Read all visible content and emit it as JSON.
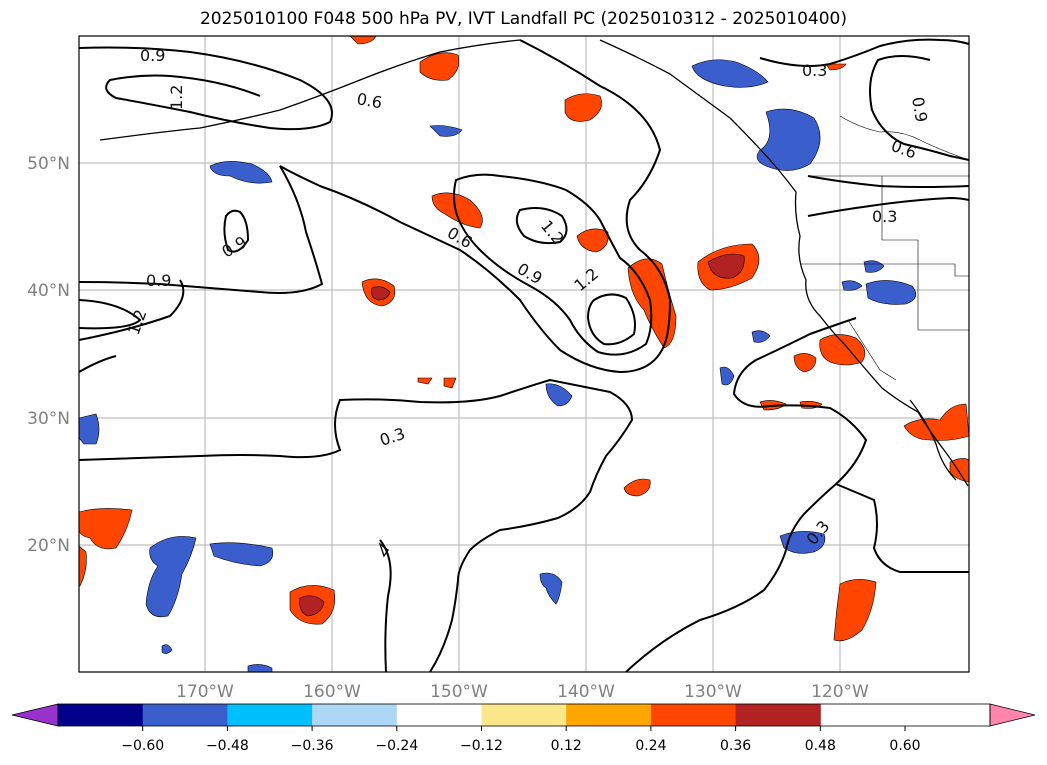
{
  "title": "2025010100 F048 500 hPa PV, IVT Landfall PC (2025010312 - 2025010400)",
  "map": {
    "lat_labels": [
      "50°N",
      "40°N",
      "30°N",
      "20°N"
    ],
    "lon_labels": [
      "170°W",
      "160°W",
      "150°W",
      "140°W",
      "130°W",
      "120°W"
    ],
    "contour_labels": [
      "0.9",
      "1.2",
      "0.6",
      "0.3",
      "0.9",
      "0.6",
      "0.3",
      "0.9",
      "0.6",
      "1.2",
      "0.9",
      "1.2",
      "0.9",
      "1.2",
      "0.3",
      "0.3"
    ]
  },
  "colorbar": {
    "ticks": [
      "−0.60",
      "−0.48",
      "−0.36",
      "−0.24",
      "−0.12",
      "0.12",
      "0.24",
      "0.36",
      "0.48",
      "0.60"
    ],
    "colors": [
      "#9932cc",
      "#00008b",
      "#3a5fcd",
      "#00bfff",
      "#add8f5",
      "#ffffff",
      "#fce68a",
      "#ffa500",
      "#ff4500",
      "#b22222",
      "#ff85aa"
    ]
  }
}
